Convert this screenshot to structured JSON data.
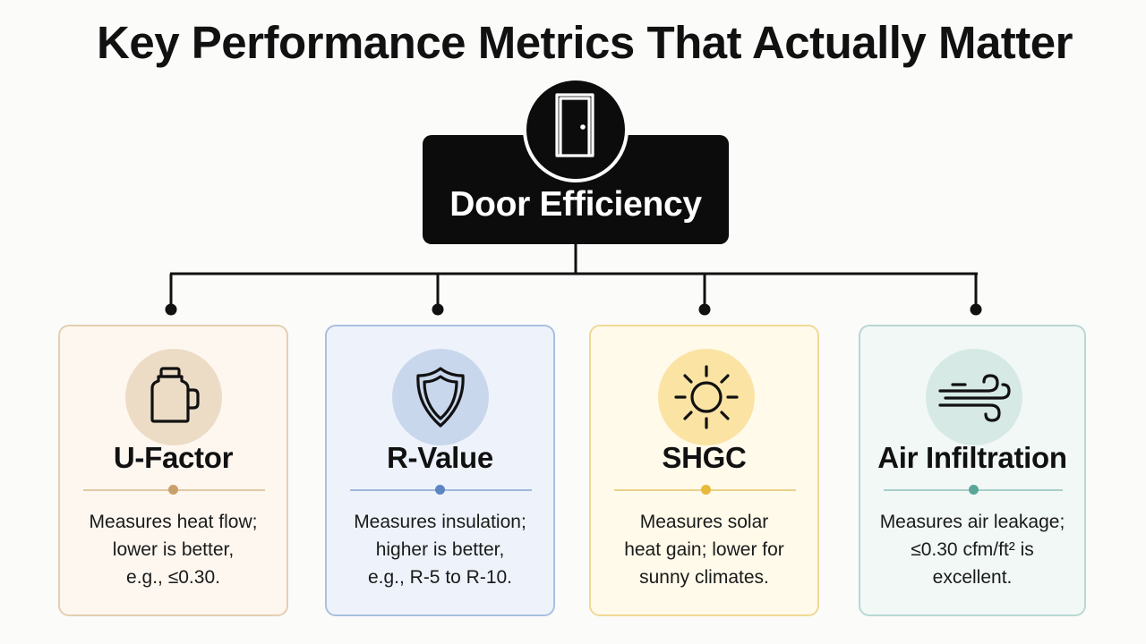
{
  "title": "Key Performance Metrics That Actually Matter",
  "root": {
    "label": "Door Efficiency",
    "icon": "door-icon"
  },
  "cards": [
    {
      "title": "U-Factor",
      "icon": "thermos-icon",
      "accent": "#c9a06a",
      "border": "#e4cfb0",
      "background": "#fdf7f0",
      "icon_bg": "#ecdcc6",
      "description": [
        "Measures heat flow;",
        "lower is better,",
        "e.g., ≤0.30."
      ]
    },
    {
      "title": "R-Value",
      "icon": "shield-icon",
      "accent": "#5c86c4",
      "border": "#a9c0df",
      "background": "#eef3fb",
      "icon_bg": "#c9d7ec",
      "description": [
        "Measures insulation;",
        "higher is better,",
        "e.g., R-5 to R-10."
      ]
    },
    {
      "title": "SHGC",
      "icon": "sun-icon",
      "accent": "#e8b93a",
      "border": "#f0d995",
      "background": "#fffaea",
      "icon_bg": "#fbe3a4",
      "description": [
        "Measures solar",
        "heat gain; lower for",
        "sunny climates."
      ]
    },
    {
      "title": "Air Infiltration",
      "icon": "wind-icon",
      "accent": "#5aa79a",
      "border": "#b8d8d2",
      "background": "#f1f8f6",
      "icon_bg": "#d6e9e5",
      "description": [
        "Measures air leakage;",
        "≤0.30 cfm/ft² is",
        "excellent."
      ]
    }
  ]
}
